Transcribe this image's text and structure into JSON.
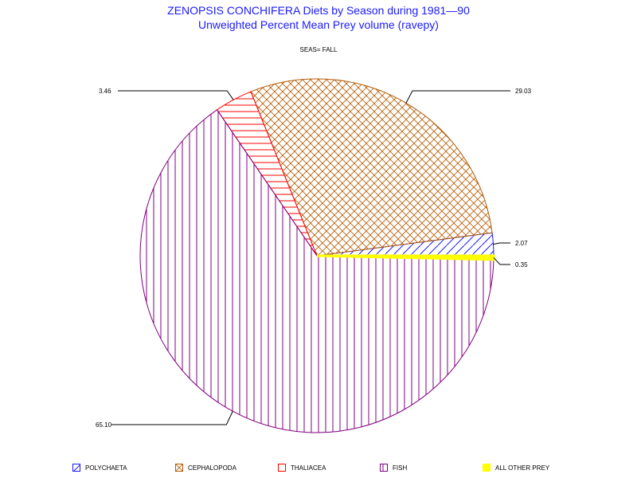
{
  "header": {
    "title": "ZENOPSIS CONCHIFERA Diets by Season during 1981—90",
    "subtitle": "Unweighted Percent Mean Prey volume (ravepy)",
    "season_label": "SEAS= FALL"
  },
  "chart_data": {
    "type": "pie",
    "categories": [
      "POLYCHAETA",
      "CEPHALOPODA",
      "THALIACEA",
      "FISH",
      "ALL OTHER PREY"
    ],
    "values": [
      2.07,
      29.03,
      3.46,
      65.1,
      0.35
    ],
    "labels": [
      "2.07",
      "29.03",
      "3.46",
      "65.10",
      "0.35"
    ],
    "colors": [
      "#1a1aff",
      "#b35900",
      "#ff0000",
      "#800080",
      "#ffff00"
    ],
    "patterns": [
      "diagonal",
      "crosshatch",
      "horizontal",
      "vertical",
      "solid"
    ],
    "legend_position": "bottom"
  },
  "legend": {
    "items": [
      {
        "label": "POLYCHAETA"
      },
      {
        "label": "CEPHALOPODA"
      },
      {
        "label": "THALIACEA"
      },
      {
        "label": "FISH"
      },
      {
        "label": "ALL OTHER PREY"
      }
    ]
  }
}
